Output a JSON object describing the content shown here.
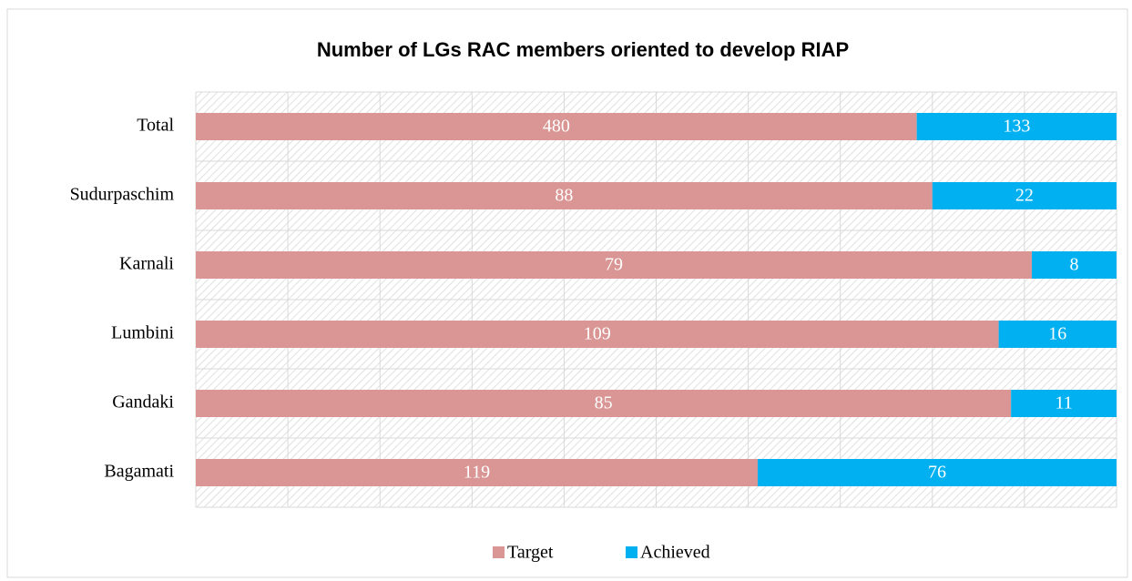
{
  "chart_data": {
    "type": "bar",
    "orientation": "horizontal",
    "stacking": "percent",
    "title": "Number of LGs RAC members oriented to develop RIAP",
    "categories": [
      "Total",
      "Sudurpaschim",
      "Karnali",
      "Lumbini",
      "Gandaki",
      "Bagamati"
    ],
    "series": [
      {
        "name": "Target",
        "color": "#d99694",
        "values": [
          480,
          88,
          79,
          109,
          85,
          119
        ]
      },
      {
        "name": "Achieved",
        "color": "#00b0f0",
        "values": [
          133,
          22,
          8,
          16,
          11,
          76
        ]
      }
    ],
    "xlim": [
      0,
      100
    ],
    "xticks": [
      0,
      10,
      20,
      30,
      40,
      50,
      60,
      70,
      80,
      90,
      100
    ],
    "tick_labels": false,
    "grid": true,
    "legend": "bottom",
    "background": "hatch"
  }
}
